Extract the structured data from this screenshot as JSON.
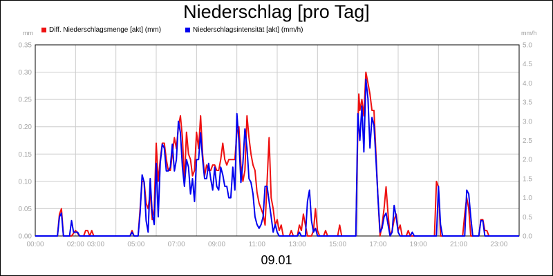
{
  "chart_data": {
    "type": "line",
    "title": "Niederschlag [pro Tag]",
    "xlabel": "09.01",
    "y_unit_left": "mm",
    "y_unit_right": "mm/h",
    "x_ticks": [
      "00:00",
      "02:00",
      "03:00",
      "05:00",
      "07:00",
      "09:00",
      "11:00",
      "13:00",
      "15:00",
      "17:00",
      "19:00",
      "21:00",
      "23:00"
    ],
    "x_tick_hours": [
      0,
      2,
      3,
      5,
      7,
      9,
      11,
      13,
      15,
      17,
      19,
      21,
      23
    ],
    "xlim": [
      0,
      24
    ],
    "y_left_ticks": [
      "0.00",
      "0.05",
      "0.10",
      "0.15",
      "0.20",
      "0.25",
      "0.30",
      "0.35"
    ],
    "y_right_ticks": [
      "0.0",
      "0.5",
      "1.0",
      "1.5",
      "2.0",
      "2.5",
      "3.0",
      "3.5",
      "4.0",
      "4.5",
      "5.0"
    ],
    "ylim_left": [
      0,
      0.35
    ],
    "ylim_right": [
      0,
      5.0
    ],
    "grid": true,
    "legend_position": "top-left",
    "series": [
      {
        "name": "Diff. Niederschlagsmenge [akt] (mm)",
        "color": "#ee1111",
        "axis": "left",
        "points": [
          [
            0,
            0
          ],
          [
            1.1,
            0
          ],
          [
            1.2,
            0.04
          ],
          [
            1.3,
            0.05
          ],
          [
            1.4,
            0
          ],
          [
            1.8,
            0
          ],
          [
            2.0,
            0.01
          ],
          [
            2.2,
            0
          ],
          [
            2.4,
            0
          ],
          [
            2.5,
            0.01
          ],
          [
            2.6,
            0.01
          ],
          [
            2.7,
            0
          ],
          [
            2.8,
            0.01
          ],
          [
            2.9,
            0
          ],
          [
            4.7,
            0
          ],
          [
            4.8,
            0.01
          ],
          [
            4.9,
            0
          ],
          [
            5.1,
            0
          ],
          [
            5.2,
            0.05
          ],
          [
            5.3,
            0.1
          ],
          [
            5.4,
            0.1
          ],
          [
            5.5,
            0.06
          ],
          [
            5.6,
            0.05
          ],
          [
            5.7,
            0.08
          ],
          [
            5.8,
            0.03
          ],
          [
            5.9,
            0.05
          ],
          [
            6.0,
            0.17
          ],
          [
            6.1,
            0.1
          ],
          [
            6.2,
            0.14
          ],
          [
            6.3,
            0.17
          ],
          [
            6.4,
            0.17
          ],
          [
            6.5,
            0.14
          ],
          [
            6.6,
            0.12
          ],
          [
            6.7,
            0.12
          ],
          [
            6.8,
            0.15
          ],
          [
            6.9,
            0.18
          ],
          [
            7.0,
            0.16
          ],
          [
            7.1,
            0.2
          ],
          [
            7.2,
            0.22
          ],
          [
            7.3,
            0.18
          ],
          [
            7.4,
            0.1
          ],
          [
            7.5,
            0.19
          ],
          [
            7.6,
            0.15
          ],
          [
            7.7,
            0.14
          ],
          [
            7.8,
            0.11
          ],
          [
            7.9,
            0.12
          ],
          [
            8.0,
            0.19
          ],
          [
            8.1,
            0.16
          ],
          [
            8.2,
            0.22
          ],
          [
            8.3,
            0.15
          ],
          [
            8.4,
            0.11
          ],
          [
            8.5,
            0.13
          ],
          [
            8.6,
            0.12
          ],
          [
            8.7,
            0.12
          ],
          [
            8.8,
            0.13
          ],
          [
            8.9,
            0.13
          ],
          [
            9.0,
            0.12
          ],
          [
            9.1,
            0.12
          ],
          [
            9.2,
            0.14
          ],
          [
            9.3,
            0.17
          ],
          [
            9.4,
            0.14
          ],
          [
            9.5,
            0.13
          ],
          [
            9.6,
            0.14
          ],
          [
            9.7,
            0.14
          ],
          [
            9.8,
            0.14
          ],
          [
            9.9,
            0.14
          ],
          [
            10.0,
            0.19
          ],
          [
            10.1,
            0.2
          ],
          [
            10.2,
            0.13
          ],
          [
            10.3,
            0.1
          ],
          [
            10.4,
            0.12
          ],
          [
            10.5,
            0.22
          ],
          [
            10.6,
            0.18
          ],
          [
            10.7,
            0.15
          ],
          [
            10.8,
            0.13
          ],
          [
            10.9,
            0.12
          ],
          [
            11.0,
            0.08
          ],
          [
            11.1,
            0.06
          ],
          [
            11.2,
            0.05
          ],
          [
            11.3,
            0.04
          ],
          [
            11.4,
            0.02
          ],
          [
            11.5,
            0.1
          ],
          [
            11.6,
            0.18
          ],
          [
            11.7,
            0.07
          ],
          [
            11.8,
            0.05
          ],
          [
            11.9,
            0.02
          ],
          [
            12.0,
            0.03
          ],
          [
            12.1,
            0.01
          ],
          [
            12.2,
            0.02
          ],
          [
            12.3,
            0
          ],
          [
            12.6,
            0
          ],
          [
            12.7,
            0.01
          ],
          [
            12.8,
            0
          ],
          [
            13.0,
            0
          ],
          [
            13.1,
            0.02
          ],
          [
            13.2,
            0.01
          ],
          [
            13.3,
            0.04
          ],
          [
            13.4,
            0.02
          ],
          [
            13.5,
            0
          ],
          [
            13.7,
            0
          ],
          [
            13.8,
            0.01
          ],
          [
            13.9,
            0.05
          ],
          [
            14.0,
            0.01
          ],
          [
            14.1,
            0
          ],
          [
            14.3,
            0
          ],
          [
            14.4,
            0.01
          ],
          [
            14.5,
            0
          ],
          [
            15.0,
            0
          ],
          [
            15.1,
            0.02
          ],
          [
            15.2,
            0
          ],
          [
            15.9,
            0
          ],
          [
            16.0,
            0.2
          ],
          [
            16.05,
            0.26
          ],
          [
            16.1,
            0.23
          ],
          [
            16.2,
            0.25
          ],
          [
            16.3,
            0.22
          ],
          [
            16.4,
            0.3
          ],
          [
            16.5,
            0.28
          ],
          [
            16.6,
            0.26
          ],
          [
            16.7,
            0.23
          ],
          [
            16.8,
            0.23
          ],
          [
            16.9,
            0.15
          ],
          [
            17.0,
            0.07
          ],
          [
            17.1,
            0
          ],
          [
            17.2,
            0.02
          ],
          [
            17.3,
            0.05
          ],
          [
            17.4,
            0.09
          ],
          [
            17.5,
            0.04
          ],
          [
            17.6,
            0
          ],
          [
            17.7,
            0.01
          ],
          [
            17.8,
            0.03
          ],
          [
            17.9,
            0.04
          ],
          [
            18.0,
            0.01
          ],
          [
            18.1,
            0.02
          ],
          [
            18.2,
            0
          ],
          [
            18.4,
            0
          ],
          [
            18.5,
            0.01
          ],
          [
            18.6,
            0
          ],
          [
            19.8,
            0
          ],
          [
            19.9,
            0.1
          ],
          [
            20.0,
            0.09
          ],
          [
            20.1,
            0
          ],
          [
            21.2,
            0
          ],
          [
            21.3,
            0.04
          ],
          [
            21.4,
            0.07
          ],
          [
            21.5,
            0.05
          ],
          [
            21.6,
            0
          ],
          [
            22.0,
            0
          ],
          [
            22.1,
            0.03
          ],
          [
            22.2,
            0.03
          ],
          [
            22.3,
            0.01
          ],
          [
            22.4,
            0.01
          ],
          [
            22.5,
            0
          ],
          [
            24,
            0
          ]
        ]
      },
      {
        "name": "Niederschlagsintensität [akt] (mm/h)",
        "color": "#0000ee",
        "axis": "right",
        "points": [
          [
            0,
            0
          ],
          [
            1.1,
            0
          ],
          [
            1.2,
            0.5
          ],
          [
            1.3,
            0.6
          ],
          [
            1.4,
            0
          ],
          [
            1.7,
            0
          ],
          [
            1.8,
            0.4
          ],
          [
            1.9,
            0.1
          ],
          [
            2.0,
            0.1
          ],
          [
            2.1,
            0.1
          ],
          [
            2.2,
            0
          ],
          [
            4.7,
            0
          ],
          [
            4.8,
            0.1
          ],
          [
            4.9,
            0
          ],
          [
            5.1,
            0
          ],
          [
            5.2,
            0.6
          ],
          [
            5.3,
            1.6
          ],
          [
            5.4,
            1.4
          ],
          [
            5.5,
            0.4
          ],
          [
            5.6,
            0.1
          ],
          [
            5.7,
            1.5
          ],
          [
            5.8,
            0.6
          ],
          [
            5.9,
            0.3
          ],
          [
            6.0,
            1.9
          ],
          [
            6.1,
            0.5
          ],
          [
            6.2,
            1.9
          ],
          [
            6.3,
            2.4
          ],
          [
            6.4,
            2.3
          ],
          [
            6.5,
            1.7
          ],
          [
            6.6,
            1.7
          ],
          [
            6.7,
            1.8
          ],
          [
            6.8,
            2.4
          ],
          [
            6.9,
            1.7
          ],
          [
            7.0,
            2.0
          ],
          [
            7.1,
            3.0
          ],
          [
            7.2,
            2.7
          ],
          [
            7.3,
            1.8
          ],
          [
            7.4,
            1.3
          ],
          [
            7.5,
            2.0
          ],
          [
            7.6,
            1.8
          ],
          [
            7.7,
            1.1
          ],
          [
            7.8,
            1.5
          ],
          [
            7.9,
            0.9
          ],
          [
            8.0,
            2.0
          ],
          [
            8.1,
            2.0
          ],
          [
            8.2,
            2.7
          ],
          [
            8.3,
            2.0
          ],
          [
            8.4,
            1.5
          ],
          [
            8.5,
            1.5
          ],
          [
            8.6,
            1.9
          ],
          [
            8.7,
            1.5
          ],
          [
            8.8,
            1.2
          ],
          [
            8.9,
            1.8
          ],
          [
            9.0,
            1.3
          ],
          [
            9.1,
            1.2
          ],
          [
            9.2,
            1.8
          ],
          [
            9.3,
            1.6
          ],
          [
            9.4,
            1.3
          ],
          [
            9.5,
            1.3
          ],
          [
            9.6,
            1.0
          ],
          [
            9.7,
            1.0
          ],
          [
            9.8,
            1.8
          ],
          [
            9.9,
            1.2
          ],
          [
            10.0,
            3.2
          ],
          [
            10.1,
            2.5
          ],
          [
            10.2,
            1.4
          ],
          [
            10.3,
            1.9
          ],
          [
            10.4,
            2.8
          ],
          [
            10.5,
            2.3
          ],
          [
            10.6,
            1.5
          ],
          [
            10.7,
            1.4
          ],
          [
            10.8,
            1.1
          ],
          [
            10.9,
            0.5
          ],
          [
            11.0,
            0.3
          ],
          [
            11.1,
            0.2
          ],
          [
            11.2,
            0.3
          ],
          [
            11.3,
            0.5
          ],
          [
            11.4,
            1.3
          ],
          [
            11.5,
            1.3
          ],
          [
            11.6,
            0.9
          ],
          [
            11.7,
            0.5
          ],
          [
            11.8,
            0.1
          ],
          [
            11.9,
            0.3
          ],
          [
            12.0,
            0.1
          ],
          [
            12.1,
            0
          ],
          [
            13.0,
            0
          ],
          [
            13.1,
            0.1
          ],
          [
            13.2,
            0
          ],
          [
            13.4,
            0
          ],
          [
            13.5,
            0.9
          ],
          [
            13.6,
            1.2
          ],
          [
            13.7,
            0.4
          ],
          [
            13.8,
            0.1
          ],
          [
            13.9,
            0.2
          ],
          [
            14.0,
            0
          ],
          [
            15.9,
            0
          ],
          [
            16.0,
            3.2
          ],
          [
            16.1,
            2.5
          ],
          [
            16.2,
            3.4
          ],
          [
            16.3,
            2.2
          ],
          [
            16.4,
            4.1
          ],
          [
            16.5,
            3.6
          ],
          [
            16.6,
            2.3
          ],
          [
            16.7,
            3.1
          ],
          [
            16.8,
            2.9
          ],
          [
            16.9,
            2.0
          ],
          [
            17.0,
            1.0
          ],
          [
            17.1,
            0.1
          ],
          [
            17.2,
            0.2
          ],
          [
            17.3,
            0.5
          ],
          [
            17.4,
            0.6
          ],
          [
            17.5,
            0.3
          ],
          [
            17.6,
            0
          ],
          [
            17.7,
            0.1
          ],
          [
            17.8,
            0.8
          ],
          [
            17.9,
            0.5
          ],
          [
            18.0,
            0.1
          ],
          [
            18.1,
            0
          ],
          [
            18.6,
            0
          ],
          [
            18.7,
            0.1
          ],
          [
            18.8,
            0
          ],
          [
            19.9,
            0
          ],
          [
            20.0,
            1.3
          ],
          [
            20.1,
            0.3
          ],
          [
            20.2,
            0
          ],
          [
            21.3,
            0
          ],
          [
            21.4,
            1.2
          ],
          [
            21.5,
            1.1
          ],
          [
            21.6,
            0.5
          ],
          [
            21.7,
            0
          ],
          [
            22.0,
            0
          ],
          [
            22.1,
            0.4
          ],
          [
            22.2,
            0.4
          ],
          [
            22.3,
            0
          ],
          [
            24,
            0
          ]
        ]
      }
    ]
  }
}
